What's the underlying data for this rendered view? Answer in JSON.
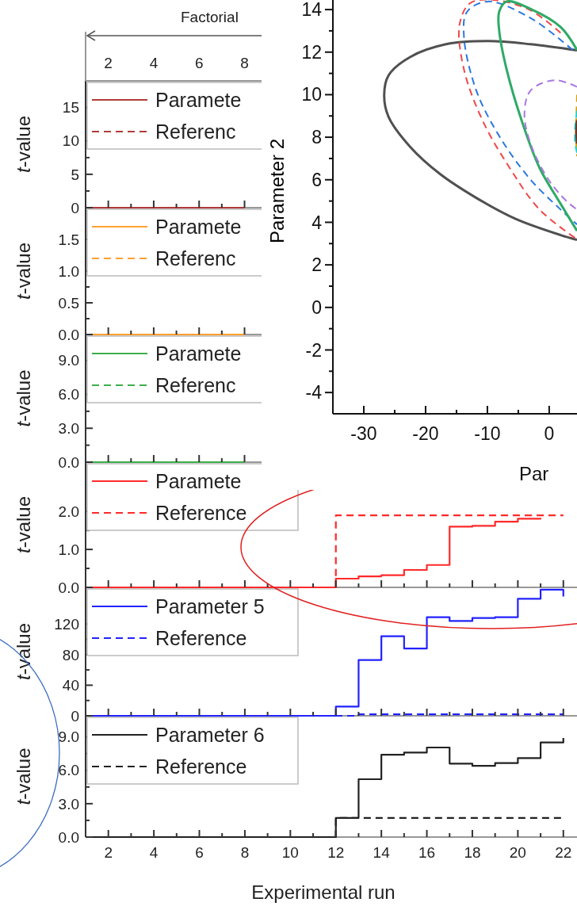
{
  "chart_data": [
    {
      "type": "step",
      "x": [
        1,
        2,
        3,
        4,
        5,
        6,
        7,
        8
      ],
      "xlim": [
        1,
        8.75
      ],
      "xticks": [
        2,
        {
          "value": 3,
          "label": null
        },
        4,
        {
          "value": 5,
          "label": null
        },
        6,
        {
          "value": 7,
          "label": null
        },
        8
      ],
      "x2lim": [
        1,
        8.75
      ],
      "x2ticks": [
        2,
        4,
        6,
        8
      ],
      "x2label": "Factorial",
      "ylim": [
        0,
        19
      ],
      "yticks": [
        0,
        {
          "value": 2.5,
          "label": null
        },
        5,
        {
          "value": 7.5,
          "label": null
        },
        10,
        15
      ],
      "ylabel": "t-value",
      "tick_labels": "y",
      "legend": "top left",
      "series": [
        {
          "name": "Paramete",
          "color": "#b03a3a",
          "line_style": "solid",
          "values": [
            0,
            0,
            0,
            0,
            0,
            0,
            0,
            0
          ]
        },
        {
          "name": "Referenc",
          "color": "#b03a3a",
          "line_style": "dashed",
          "values": [
            null,
            null,
            null,
            null,
            null,
            null,
            null,
            null
          ]
        }
      ]
    },
    {
      "type": "step",
      "x": [
        1,
        2,
        3,
        4,
        5,
        6,
        7,
        8
      ],
      "xlim": [
        1,
        8.75
      ],
      "xticks": [
        2,
        {
          "value": 3,
          "label": null
        },
        4,
        {
          "value": 5,
          "label": null
        },
        6,
        {
          "value": 7,
          "label": null
        },
        8
      ],
      "ylim": [
        0,
        2
      ],
      "yticks": [
        {
          "value": 0,
          "label": "0.0"
        },
        {
          "value": 0.25,
          "label": null
        },
        0.5,
        {
          "value": 0.75,
          "label": null
        },
        {
          "value": 1,
          "label": "1.0"
        },
        1.5
      ],
      "ylabel": "t-value",
      "tick_labels": "y",
      "legend": "top left",
      "series": [
        {
          "name": "Paramete",
          "color": "#ffa030",
          "line_style": "solid",
          "values": [
            0,
            0,
            0,
            0,
            0,
            0,
            0,
            0
          ]
        },
        {
          "name": "Referenc",
          "color": "#ffa030",
          "line_style": "dashed",
          "values": [
            null,
            null,
            null,
            null,
            null,
            null,
            null,
            null
          ]
        }
      ]
    },
    {
      "type": "step",
      "x": [
        1,
        2,
        3,
        4,
        5,
        6,
        7,
        8
      ],
      "xlim": [
        1,
        8.75
      ],
      "xticks": [
        2,
        {
          "value": 3,
          "label": null
        },
        4,
        {
          "value": 5,
          "label": null
        },
        6,
        {
          "value": 7,
          "label": null
        },
        8
      ],
      "ylim": [
        0,
        11.3
      ],
      "yticks": [
        {
          "value": 0,
          "label": "0.0"
        },
        {
          "value": 1.5,
          "label": null
        },
        {
          "value": 3,
          "label": "3.0"
        },
        {
          "value": 4.5,
          "label": null
        },
        {
          "value": 6,
          "label": "6.0"
        },
        {
          "value": 9,
          "label": "9.0"
        }
      ],
      "ylabel": "t-value",
      "tick_labels": "y",
      "legend": "top left",
      "series": [
        {
          "name": "Paramete",
          "color": "#3cae4a",
          "line_style": "solid",
          "values": [
            0,
            0,
            0,
            0,
            0,
            0,
            0,
            0
          ]
        },
        {
          "name": "Referenc",
          "color": "#3cae4a",
          "line_style": "dashed",
          "values": [
            null,
            null,
            null,
            null,
            null,
            null,
            null,
            null
          ]
        }
      ]
    },
    {
      "type": "step",
      "x": [
        1,
        2,
        3,
        4,
        5,
        6,
        7,
        8,
        9,
        10,
        11,
        12,
        13,
        14,
        15,
        16,
        17,
        18,
        19,
        20,
        21,
        22
      ],
      "xlim": [
        1,
        22.6
      ],
      "xticks": [
        2,
        {
          "value": 3,
          "label": null
        },
        4,
        {
          "value": 5,
          "label": null
        },
        6,
        {
          "value": 7,
          "label": null
        },
        8,
        {
          "value": 9,
          "label": null
        },
        10,
        {
          "value": 11,
          "label": null
        },
        12,
        {
          "value": 13,
          "label": null
        },
        14,
        {
          "value": 15,
          "label": null
        },
        16,
        {
          "value": 17,
          "label": null
        },
        18,
        {
          "value": 19,
          "label": null
        },
        20,
        {
          "value": 21,
          "label": null
        },
        22
      ],
      "ylim": [
        0,
        3.3
      ],
      "yticks": [
        {
          "value": 0,
          "label": "0.0"
        },
        {
          "value": 0.5,
          "label": null
        },
        {
          "value": 1,
          "label": "1.0"
        },
        {
          "value": 1.5,
          "label": null
        },
        {
          "value": 2,
          "label": "2.0"
        }
      ],
      "ylabel": "t-value",
      "tick_labels": "y",
      "legend": "top left",
      "series": [
        {
          "name": "Paramete",
          "color": "#ff2a2a",
          "line_style": "solid",
          "values": [
            0,
            0,
            0,
            0,
            0,
            0,
            0,
            0,
            0,
            0,
            0,
            0.23,
            0.29,
            0.32,
            0.46,
            0.59,
            1.6,
            1.62,
            1.73,
            1.81,
            1.83,
            null
          ]
        },
        {
          "name": "Reference",
          "color": "#ff2a2a",
          "line_style": "dashed",
          "values": [
            0,
            0,
            0,
            0,
            0,
            0,
            0,
            0,
            0,
            0,
            0,
            1.9,
            1.9,
            1.9,
            1.9,
            1.9,
            1.9,
            1.9,
            1.9,
            1.9,
            1.9,
            1.9
          ]
        }
      ]
    },
    {
      "type": "step",
      "x": [
        1,
        2,
        3,
        4,
        5,
        6,
        7,
        8,
        9,
        10,
        11,
        12,
        13,
        14,
        15,
        16,
        17,
        18,
        19,
        20,
        21,
        22
      ],
      "xlim": [
        1,
        22.6
      ],
      "xticks": [
        2,
        {
          "value": 3,
          "label": null
        },
        4,
        {
          "value": 5,
          "label": null
        },
        6,
        {
          "value": 7,
          "label": null
        },
        8,
        {
          "value": 9,
          "label": null
        },
        10,
        {
          "value": 11,
          "label": null
        },
        12,
        {
          "value": 13,
          "label": null
        },
        14,
        {
          "value": 15,
          "label": null
        },
        16,
        {
          "value": 17,
          "label": null
        },
        18,
        {
          "value": 19,
          "label": null
        },
        20,
        {
          "value": 21,
          "label": null
        },
        22
      ],
      "ylim": [
        0,
        168
      ],
      "yticks": [
        0,
        {
          "value": 20,
          "label": null
        },
        40,
        {
          "value": 60,
          "label": null
        },
        80,
        {
          "value": 100,
          "label": null
        },
        120
      ],
      "ylabel": "t-value",
      "tick_labels": "y",
      "legend": "top left",
      "series": [
        {
          "name": "Parameter 5",
          "color": "#2222ff",
          "line_style": "solid",
          "values": [
            0,
            0,
            0,
            0,
            0,
            0,
            0,
            0,
            0,
            0,
            0,
            12,
            73,
            104,
            88,
            129,
            124,
            128,
            129,
            153,
            165,
            156
          ]
        },
        {
          "name": "Reference",
          "color": "#2222ff",
          "line_style": "dashed",
          "values": [
            0,
            0,
            0,
            0,
            0,
            0,
            0,
            0,
            0,
            0,
            0,
            0,
            2,
            2,
            2,
            2,
            2,
            2,
            2,
            2,
            2,
            2
          ]
        }
      ]
    },
    {
      "type": "step",
      "x": [
        1,
        2,
        3,
        4,
        5,
        6,
        7,
        8,
        9,
        10,
        11,
        12,
        13,
        14,
        15,
        16,
        17,
        18,
        19,
        20,
        21,
        22
      ],
      "xlim": [
        1,
        22.6
      ],
      "xticks": [
        2,
        {
          "value": 3,
          "label": null
        },
        4,
        {
          "value": 5,
          "label": null
        },
        6,
        {
          "value": 7,
          "label": null
        },
        8,
        {
          "value": 9,
          "label": null
        },
        10,
        {
          "value": 11,
          "label": null
        },
        12,
        {
          "value": 13,
          "label": null
        },
        14,
        {
          "value": 15,
          "label": null
        },
        16,
        {
          "value": 17,
          "label": null
        },
        18,
        {
          "value": 19,
          "label": null
        },
        20,
        {
          "value": 21,
          "label": null
        },
        22
      ],
      "ylim": [
        0,
        10.9
      ],
      "yticks": [
        {
          "value": 0,
          "label": "0.0"
        },
        {
          "value": 1.5,
          "label": null
        },
        {
          "value": 3,
          "label": "3.0"
        },
        {
          "value": 4.5,
          "label": null
        },
        {
          "value": 6,
          "label": "6.0"
        },
        {
          "value": 7.5,
          "label": null
        },
        {
          "value": 9,
          "label": "9.0"
        }
      ],
      "xlabel": "Experimental run",
      "ylabel": "t-value",
      "legend": "top left",
      "series": [
        {
          "name": "Parameter 6",
          "color": "#222222",
          "line_style": "solid",
          "values": [
            0,
            0,
            0,
            0,
            0,
            0,
            0,
            0,
            0,
            0,
            0,
            1.72,
            5.2,
            7.4,
            7.6,
            8.05,
            6.6,
            6.4,
            6.65,
            7.1,
            8.5,
            8.9
          ]
        },
        {
          "name": "Reference",
          "color": "#222222",
          "line_style": "dashed",
          "values": [
            0,
            0,
            0,
            0,
            0,
            0,
            0,
            0,
            0,
            0,
            0,
            1.72,
            1.72,
            1.72,
            1.72,
            1.72,
            1.72,
            1.72,
            1.72,
            1.72,
            1.72,
            1.72
          ]
        }
      ]
    },
    {
      "type": "line",
      "xlim": [
        -35,
        4.5
      ],
      "ylim": [
        -5,
        14.45
      ],
      "xticks": [
        -30,
        {
          "value": -25,
          "label": null
        },
        -20,
        {
          "value": -15,
          "label": null
        },
        -10,
        {
          "value": -5,
          "label": null
        },
        0
      ],
      "yticks": [
        -4,
        {
          "value": -3,
          "label": null
        },
        -2,
        {
          "value": -1,
          "label": null
        },
        0,
        {
          "value": 1,
          "label": null
        },
        2,
        {
          "value": 3,
          "label": null
        },
        4,
        {
          "value": 5,
          "label": null
        },
        6,
        {
          "value": 7,
          "label": null
        },
        8,
        {
          "value": 9,
          "label": null
        },
        10,
        {
          "value": 11,
          "label": null
        },
        12,
        {
          "value": 13,
          "label": null
        },
        14
      ],
      "xlabel": "Par",
      "ylabel": "Parameter 2",
      "series": [
        {
          "color": "#505050",
          "line_style": "solid",
          "x": [
            4.5,
            -3,
            -9.9,
            -16.7,
            -22.5,
            -26,
            -26.7,
            -26,
            -22.5,
            -17.7,
            -11.8,
            -5.5,
            1.85,
            4.5
          ],
          "values": [
            12.08,
            12.37,
            12.52,
            12.37,
            11.77,
            10.9,
            9.97,
            8.96,
            7.55,
            6.28,
            5.15,
            4.17,
            3.4,
            3.18
          ]
        },
        {
          "color": "#f04848",
          "line_style": "dashed",
          "x": [
            1.85,
            -3,
            -8.9,
            -12.8,
            -14.5,
            -13.8,
            -10.8,
            -6.4,
            -1.56,
            4.5
          ],
          "values": [
            12.9,
            13.96,
            14.45,
            14.3,
            13.3,
            11.2,
            8.8,
            6.56,
            4.6,
            3.2
          ]
        },
        {
          "color": "#2a78e0",
          "line_style": "dashed",
          "x": [
            3.8,
            -3,
            -9.9,
            -13.3,
            -13.8,
            -11.8,
            -7.9,
            -3,
            1.85,
            4.5
          ],
          "values": [
            12.1,
            13.6,
            14.38,
            13.89,
            12.76,
            10.2,
            7.97,
            6,
            4.6,
            3.9
          ]
        },
        {
          "color": "#2eaa66",
          "line_style": "solid",
          "x": [
            4.5,
            1.85,
            -3,
            -6.9,
            -8.1,
            -8.1,
            -6.9,
            -4.5,
            -1.56,
            1.85,
            4.5
          ],
          "values": [
            12.1,
            13.18,
            14.03,
            14.38,
            13.89,
            13.04,
            11.2,
            8.82,
            6.56,
            4.87,
            3.6
          ]
        },
        {
          "color": "#a878e0",
          "line_style": "dashed",
          "x": [
            4.5,
            0.9,
            -3,
            -4,
            -3,
            -0.1,
            2.8,
            4.5
          ],
          "values": [
            10.37,
            10.68,
            10.2,
            9.1,
            7.69,
            6,
            5,
            4.6
          ]
        },
        {
          "color": "#d4a010",
          "line_style": "dashed",
          "x": [
            4.5,
            4.4,
            4.3,
            4.5
          ],
          "values": [
            10,
            9.1,
            8.1,
            7.1
          ]
        },
        {
          "color": "#20d0d0",
          "line_style": "dashed",
          "x": [
            4.5,
            4.2,
            4.2,
            4.5
          ],
          "values": [
            9.24,
            8.5,
            7.7,
            7.27
          ]
        },
        {
          "color": "#6a3a2a",
          "line_style": "solid",
          "x": [
            4.5,
            4.4,
            4.5
          ],
          "values": [
            8.8,
            8.25,
            7.7
          ]
        }
      ]
    }
  ]
}
